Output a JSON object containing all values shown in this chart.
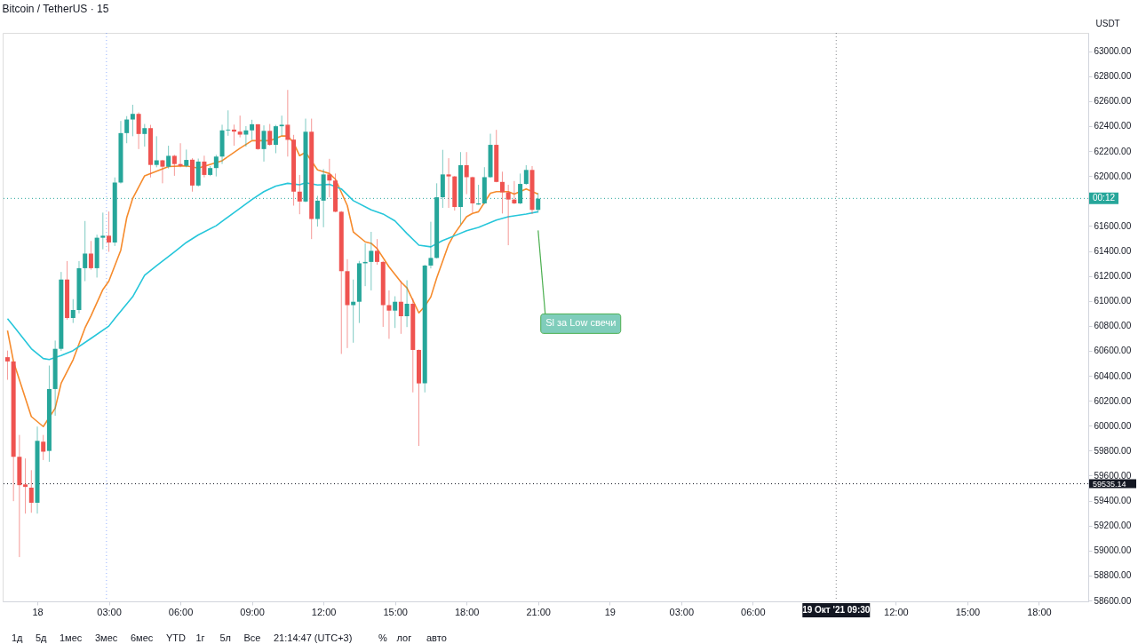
{
  "chart_data": {
    "type": "candlestick",
    "title": "Bitcoin / TetherUS · 15",
    "ylabel": "USDT",
    "x": [
      "2021-10-17T22:45",
      "2021-10-17T23:00",
      "2021-10-17T23:15",
      "2021-10-17T23:30",
      "2021-10-17T23:45",
      "2021-10-18T00:00",
      "2021-10-18T00:15",
      "2021-10-18T00:30",
      "2021-10-18T00:45",
      "2021-10-18T01:00",
      "2021-10-18T01:15",
      "2021-10-18T01:30",
      "2021-10-18T01:45",
      "2021-10-18T02:00",
      "2021-10-18T02:15",
      "2021-10-18T02:30",
      "2021-10-18T02:45",
      "2021-10-18T03:00",
      "2021-10-18T03:15",
      "2021-10-18T03:30",
      "2021-10-18T03:45",
      "2021-10-18T04:00",
      "2021-10-18T04:15",
      "2021-10-18T04:30",
      "2021-10-18T04:45",
      "2021-10-18T05:00",
      "2021-10-18T05:15",
      "2021-10-18T05:30",
      "2021-10-18T05:45",
      "2021-10-18T06:00",
      "2021-10-18T06:15",
      "2021-10-18T06:30",
      "2021-10-18T06:45",
      "2021-10-18T07:00",
      "2021-10-18T07:15",
      "2021-10-18T07:30",
      "2021-10-18T07:45",
      "2021-10-18T08:00",
      "2021-10-18T08:15",
      "2021-10-18T08:30",
      "2021-10-18T08:45",
      "2021-10-18T09:00",
      "2021-10-18T09:15",
      "2021-10-18T09:30",
      "2021-10-18T09:45",
      "2021-10-18T10:00",
      "2021-10-18T10:15",
      "2021-10-18T10:30",
      "2021-10-18T10:45",
      "2021-10-18T11:00",
      "2021-10-18T11:15",
      "2021-10-18T11:30",
      "2021-10-18T11:45",
      "2021-10-18T12:00",
      "2021-10-18T12:15",
      "2021-10-18T12:30",
      "2021-10-18T12:45",
      "2021-10-18T13:00",
      "2021-10-18T13:15",
      "2021-10-18T13:30",
      "2021-10-18T13:45",
      "2021-10-18T14:00",
      "2021-10-18T14:15",
      "2021-10-18T14:30",
      "2021-10-18T14:45",
      "2021-10-18T15:00",
      "2021-10-18T15:15",
      "2021-10-18T15:30",
      "2021-10-18T15:45",
      "2021-10-18T16:00",
      "2021-10-18T16:15",
      "2021-10-18T16:30",
      "2021-10-18T16:45",
      "2021-10-18T17:00",
      "2021-10-18T17:15",
      "2021-10-18T17:30",
      "2021-10-18T17:45",
      "2021-10-18T18:00",
      "2021-10-18T18:15",
      "2021-10-18T18:30",
      "2021-10-18T18:45",
      "2021-10-18T19:00",
      "2021-10-18T19:15",
      "2021-10-18T19:30",
      "2021-10-18T19:45",
      "2021-10-18T20:00",
      "2021-10-18T20:15",
      "2021-10-18T20:30",
      "2021-10-18T20:45",
      "2021-10-18T21:00"
    ],
    "ohlc": [
      [
        60549,
        60602,
        60368,
        60515
      ],
      [
        60515,
        60515,
        59396,
        59751
      ],
      [
        59751,
        59926,
        58948,
        59524
      ],
      [
        59530,
        59738,
        59296,
        59510
      ],
      [
        59504,
        59644,
        59303,
        59383
      ],
      [
        59383,
        59993,
        59296,
        59879
      ],
      [
        59872,
        59926,
        59725,
        59792
      ],
      [
        59798,
        60482,
        59711,
        60294
      ],
      [
        60294,
        60682,
        60080,
        60616
      ],
      [
        60616,
        61232,
        60600,
        61171
      ],
      [
        61171,
        61319,
        60850,
        60863
      ],
      [
        60863,
        61014,
        60823,
        60927
      ],
      [
        60927,
        61319,
        60900,
        61262
      ],
      [
        61262,
        61640,
        61158,
        61379
      ],
      [
        61379,
        61480,
        61250,
        61262
      ],
      [
        61262,
        61530,
        61187,
        61506
      ],
      [
        61506,
        61707,
        61413,
        61522
      ],
      [
        61522,
        61716,
        61393,
        61468
      ],
      [
        61468,
        61989,
        61440,
        61948
      ],
      [
        61948,
        62441,
        61940,
        62344
      ],
      [
        62344,
        62480,
        62263,
        62453
      ],
      [
        62453,
        62571,
        62319,
        62498
      ],
      [
        62498,
        62510,
        62216,
        62337
      ],
      [
        62337,
        62417,
        62236,
        62384
      ],
      [
        62384,
        62410,
        61989,
        62089
      ],
      [
        62089,
        62319,
        62070,
        62126
      ],
      [
        62126,
        62130,
        61942,
        62075
      ],
      [
        62075,
        62243,
        62060,
        62162
      ],
      [
        62162,
        62170,
        62002,
        62096
      ],
      [
        62096,
        62263,
        62070,
        62082
      ],
      [
        62082,
        62212,
        62070,
        62129
      ],
      [
        62131,
        62143,
        61875,
        61924
      ],
      [
        61924,
        62140,
        61915,
        62116
      ],
      [
        62116,
        62163,
        61990,
        62009
      ],
      [
        62009,
        62080,
        62000,
        62064
      ],
      [
        62064,
        62170,
        61997,
        62156
      ],
      [
        62156,
        62411,
        62097,
        62366
      ],
      [
        62366,
        62526,
        62323,
        62372
      ],
      [
        62372,
        62412,
        62243,
        62356
      ],
      [
        62356,
        62484,
        62310,
        62332
      ],
      [
        62332,
        62400,
        62236,
        62366
      ],
      [
        62366,
        62451,
        62290,
        62415
      ],
      [
        62415,
        62415,
        62210,
        62216
      ],
      [
        62216,
        62406,
        62116,
        62362
      ],
      [
        62362,
        62417,
        62243,
        62250
      ],
      [
        62250,
        62410,
        62183,
        62399
      ],
      [
        62399,
        62484,
        62323,
        62411
      ],
      [
        62411,
        62690,
        62156,
        62290
      ],
      [
        62292,
        62330,
        61763,
        61875
      ],
      [
        61875,
        62009,
        61694,
        61796
      ],
      [
        61796,
        62460,
        61790,
        62355
      ],
      [
        62355,
        62460,
        61495,
        61656
      ],
      [
        61656,
        61841,
        61595,
        61803
      ],
      [
        61803,
        62056,
        61590,
        62013
      ],
      [
        62013,
        62138,
        61830,
        61964
      ],
      [
        61964,
        62020,
        61710,
        61714
      ],
      [
        61714,
        61720,
        60575,
        61238
      ],
      [
        61238,
        61334,
        60622,
        60966
      ],
      [
        60966,
        61171,
        60665,
        60993
      ],
      [
        60993,
        61320,
        60823,
        61301
      ],
      [
        61301,
        61461,
        61118,
        61312
      ],
      [
        61312,
        61553,
        61084,
        61401
      ],
      [
        61401,
        61495,
        61290,
        61312
      ],
      [
        61312,
        61320,
        60792,
        60966
      ],
      [
        60966,
        61084,
        60696,
        60922
      ],
      [
        60922,
        61037,
        60783,
        60993
      ],
      [
        60993,
        61160,
        60736,
        60877
      ],
      [
        60877,
        61165,
        60790,
        60977
      ],
      [
        60977,
        61020,
        60267,
        60607
      ],
      [
        60607,
        60610,
        59838,
        60339
      ],
      [
        60339,
        61290,
        60267,
        61283
      ],
      [
        61283,
        61634,
        61260,
        61344
      ],
      [
        61344,
        61942,
        61340,
        61830
      ],
      [
        61830,
        62210,
        61745,
        62013
      ],
      [
        62013,
        62143,
        61745,
        61997
      ],
      [
        61997,
        62000,
        61723,
        61752
      ],
      [
        61752,
        62192,
        61613,
        62087
      ],
      [
        62087,
        62192,
        61855,
        61991
      ],
      [
        61991,
        61995,
        61707,
        61781
      ],
      [
        61772,
        61930,
        61770,
        61781
      ],
      [
        61781,
        62071,
        61775,
        61991
      ],
      [
        61991,
        62339,
        61985,
        62250
      ],
      [
        62250,
        62370,
        61950,
        61953
      ],
      [
        61953,
        62035,
        61700,
        61870
      ],
      [
        61870,
        61930,
        61446,
        61812
      ],
      [
        61812,
        61960,
        61775,
        61781
      ],
      [
        61781,
        62020,
        61775,
        61937
      ],
      [
        61937,
        62087,
        61930,
        62049
      ],
      [
        62049,
        62080,
        61696,
        61729
      ],
      [
        61729,
        61863,
        61707,
        61819
      ]
    ],
    "colors": [
      "#ef5350",
      "#ef5350",
      "#ef5350",
      "#ef5350",
      "#ef5350",
      "#26a69a",
      "#ef5350",
      "#26a69a",
      "#26a69a",
      "#26a69a",
      "#ef5350",
      "#26a69a",
      "#26a69a",
      "#26a69a",
      "#ef5350",
      "#26a69a",
      "#26a69a",
      "#ef5350",
      "#26a69a",
      "#26a69a",
      "#26a69a",
      "#26a69a",
      "#ef5350",
      "#26a69a",
      "#ef5350",
      "#26a69a",
      "#ef5350",
      "#26a69a",
      "#ef5350",
      "#ef5350",
      "#26a69a",
      "#ef5350",
      "#26a69a",
      "#ef5350",
      "#26a69a",
      "#26a69a",
      "#26a69a",
      "#26a69a",
      "#ef5350",
      "#ef5350",
      "#26a69a",
      "#26a69a",
      "#ef5350",
      "#26a69a",
      "#ef5350",
      "#26a69a",
      "#26a69a",
      "#ef5350",
      "#ef5350",
      "#ef5350",
      "#26a69a",
      "#ef5350",
      "#26a69a",
      "#26a69a",
      "#ef5350",
      "#ef5350",
      "#ef5350",
      "#ef5350",
      "#26a69a",
      "#26a69a",
      "#26a69a",
      "#26a69a",
      "#ef5350",
      "#ef5350",
      "#ef5350",
      "#26a69a",
      "#ef5350",
      "#26a69a",
      "#ef5350",
      "#ef5350",
      "#26a69a",
      "#26a69a",
      "#26a69a",
      "#26a69a",
      "#ef5350",
      "#ef5350",
      "#26a69a",
      "#ef5350",
      "#ef5350",
      "#26a69a",
      "#26a69a",
      "#26a69a",
      "#ef5350",
      "#ef5350",
      "#ef5350",
      "#ef5350",
      "#26a69a",
      "#26a69a",
      "#ef5350",
      "#26a69a"
    ],
    "series": [
      {
        "type": "line",
        "color": "#f68b2c",
        "x": [
          "2021-10-17T22:45",
          "2021-10-17T23:00",
          "2021-10-17T23:45",
          "2021-10-18T00:15",
          "2021-10-18T00:45",
          "2021-10-18T01:00",
          "2021-10-18T01:30",
          "2021-10-18T02:00",
          "2021-10-18T02:15",
          "2021-10-18T02:45",
          "2021-10-18T03:00",
          "2021-10-18T03:30",
          "2021-10-18T03:45",
          "2021-10-18T04:00",
          "2021-10-18T04:30",
          "2021-10-18T05:00",
          "2021-10-18T05:30",
          "2021-10-18T06:15",
          "2021-10-18T06:45",
          "2021-10-18T07:45",
          "2021-10-18T08:30",
          "2021-10-18T09:00",
          "2021-10-18T09:45",
          "2021-10-18T10:15",
          "2021-10-18T10:30",
          "2021-10-18T10:45",
          "2021-10-18T11:00",
          "2021-10-18T11:15",
          "2021-10-18T11:45",
          "2021-10-18T12:00",
          "2021-10-18T12:15",
          "2021-10-18T12:30",
          "2021-10-18T13:00",
          "2021-10-18T13:15",
          "2021-10-18T13:45",
          "2021-10-18T14:00",
          "2021-10-18T14:15",
          "2021-10-18T14:45",
          "2021-10-18T15:15",
          "2021-10-18T15:30",
          "2021-10-18T16:00",
          "2021-10-18T16:15",
          "2021-10-18T16:30",
          "2021-10-18T16:45",
          "2021-10-18T17:15",
          "2021-10-18T17:30",
          "2021-10-18T18:00",
          "2021-10-18T18:15",
          "2021-10-18T18:30",
          "2021-10-18T19:00",
          "2021-10-18T19:15",
          "2021-10-18T19:45",
          "2021-10-18T20:00",
          "2021-10-18T20:30",
          "2021-10-18T21:00"
        ],
        "values": [
          60763,
          60515,
          60073,
          59993,
          60140,
          60341,
          60528,
          60783,
          60880,
          61091,
          61158,
          61406,
          61667,
          61821,
          62002,
          62038,
          62076,
          62082,
          62064,
          62123,
          62223,
          62283,
          62283,
          62321,
          62321,
          62265,
          62163,
          62190,
          62049,
          62035,
          62020,
          61975,
          61763,
          61553,
          61473,
          61461,
          61419,
          61272,
          61151,
          61104,
          60904,
          60957,
          61031,
          61185,
          61453,
          61540,
          61674,
          61701,
          61714,
          61863,
          61875,
          61875,
          61855,
          61897,
          61855
        ]
      },
      {
        "type": "line",
        "color": "#26c6da",
        "x": [
          "2021-10-17T22:45",
          "2021-10-17T23:00",
          "2021-10-17T23:45",
          "2021-10-18T00:15",
          "2021-10-18T00:30",
          "2021-10-18T01:00",
          "2021-10-18T01:30",
          "2021-10-18T02:15",
          "2021-10-18T03:00",
          "2021-10-18T03:15",
          "2021-10-18T04:00",
          "2021-10-18T04:30",
          "2021-10-18T05:00",
          "2021-10-18T05:45",
          "2021-10-18T06:15",
          "2021-10-18T06:45",
          "2021-10-18T07:30",
          "2021-10-18T08:15",
          "2021-10-18T09:00",
          "2021-10-18T09:30",
          "2021-10-18T10:00",
          "2021-10-18T10:30",
          "2021-10-18T11:00",
          "2021-10-18T11:15",
          "2021-10-18T11:45",
          "2021-10-18T12:15",
          "2021-10-18T12:45",
          "2021-10-18T13:15",
          "2021-10-18T14:00",
          "2021-10-18T14:30",
          "2021-10-18T15:00",
          "2021-10-18T15:30",
          "2021-10-18T16:00",
          "2021-10-18T16:30",
          "2021-10-18T17:00",
          "2021-10-18T17:30",
          "2021-10-18T18:00",
          "2021-10-18T18:30",
          "2021-10-18T19:15",
          "2021-10-18T19:45",
          "2021-10-18T20:30",
          "2021-10-18T21:00"
        ],
        "values": [
          60857,
          60798,
          60617,
          60538,
          60530,
          60562,
          60602,
          60699,
          60798,
          60860,
          61033,
          61205,
          61282,
          61392,
          61468,
          61528,
          61602,
          61707,
          61812,
          61875,
          61920,
          61942,
          61930,
          61946,
          61928,
          61933,
          61897,
          61803,
          61729,
          61696,
          61640,
          61540,
          61446,
          61433,
          61484,
          61522,
          61562,
          61589,
          61647,
          61674,
          61696,
          61714
        ]
      }
    ],
    "xlim": [
      "2021-10-17T22:44",
      "2021-10-19T19:53"
    ],
    "xticks": [
      {
        "value": "2021-10-18T00:00",
        "label": "18"
      },
      {
        "value": "2021-10-18T03:00",
        "label": "03:00"
      },
      {
        "value": "2021-10-18T06:00",
        "label": "06:00"
      },
      {
        "value": "2021-10-18T09:00",
        "label": "09:00"
      },
      {
        "value": "2021-10-18T12:00",
        "label": "12:00"
      },
      {
        "value": "2021-10-18T15:00",
        "label": "15:00"
      },
      {
        "value": "2021-10-18T18:00",
        "label": "18:00"
      },
      {
        "value": "2021-10-18T21:00",
        "label": "21:00"
      },
      {
        "value": "2021-10-19T00:00",
        "label": "19"
      },
      {
        "value": "2021-10-19T03:00",
        "label": "03:00"
      },
      {
        "value": "2021-10-19T06:00",
        "label": "06:00"
      },
      {
        "value": "2021-10-19T12:00",
        "label": "12:00"
      },
      {
        "value": "2021-10-19T15:00",
        "label": "15:00"
      },
      {
        "value": "2021-10-19T18:00",
        "label": "18:00"
      }
    ],
    "ylim": [
      58593,
      63147
    ],
    "yticks": [
      {
        "value": 58600,
        "label": "58600.00"
      },
      {
        "value": 58800,
        "label": "58800.00"
      },
      {
        "value": 59000,
        "label": "59000.00"
      },
      {
        "value": 59200,
        "label": "59200.00"
      },
      {
        "value": 59400,
        "label": "59400.00"
      },
      {
        "value": 59600,
        "label": "59600.00"
      },
      {
        "value": 59800,
        "label": "59800.00"
      },
      {
        "value": 60000,
        "label": "60000.00"
      },
      {
        "value": 60200,
        "label": "60200.00"
      },
      {
        "value": 60400,
        "label": "60400.00"
      },
      {
        "value": 60600,
        "label": "60600.00"
      },
      {
        "value": 60800,
        "label": "60800.00"
      },
      {
        "value": 61000,
        "label": "61000.00"
      },
      {
        "value": 61200,
        "label": "61200.00"
      },
      {
        "value": 61400,
        "label": "61400.00"
      },
      {
        "value": 61600,
        "label": "61600.00"
      },
      {
        "value": 61800,
        "label": null
      },
      {
        "value": 62000,
        "label": "62000.00"
      },
      {
        "value": 62200,
        "label": "62200.00"
      },
      {
        "value": 62400,
        "label": "62400.00"
      },
      {
        "value": 62600,
        "label": "62600.00"
      },
      {
        "value": 62800,
        "label": "62800.00"
      },
      {
        "value": 63000,
        "label": "63000.00"
      }
    ],
    "grid": false,
    "ref_lines": [
      {
        "axis": "y",
        "value": 61821,
        "label": null,
        "color": "#26a69a",
        "line_style": "dotted"
      },
      {
        "axis": "y",
        "value": 59535.14,
        "label": "59535.14",
        "color": "#131722",
        "line_style": "dotted"
      },
      {
        "axis": "x",
        "value": "2021-10-19T09:30",
        "label": "19 Окт '21  09:30",
        "color": "#131722",
        "line_style": "dotted"
      },
      {
        "axis": "x",
        "value": "2021-10-18T02:54",
        "label": null,
        "color": "#2962ff",
        "line_style": "dotted"
      }
    ],
    "annotations": [
      "Sl за Low свечи",
      "00:12",
      "1д",
      "5д",
      "1мес",
      "3мес",
      "6мес",
      "YTD",
      "1г",
      "5л",
      "Все",
      "21:14:47 (UTC+3)",
      "%",
      "лог",
      "авто"
    ]
  }
}
